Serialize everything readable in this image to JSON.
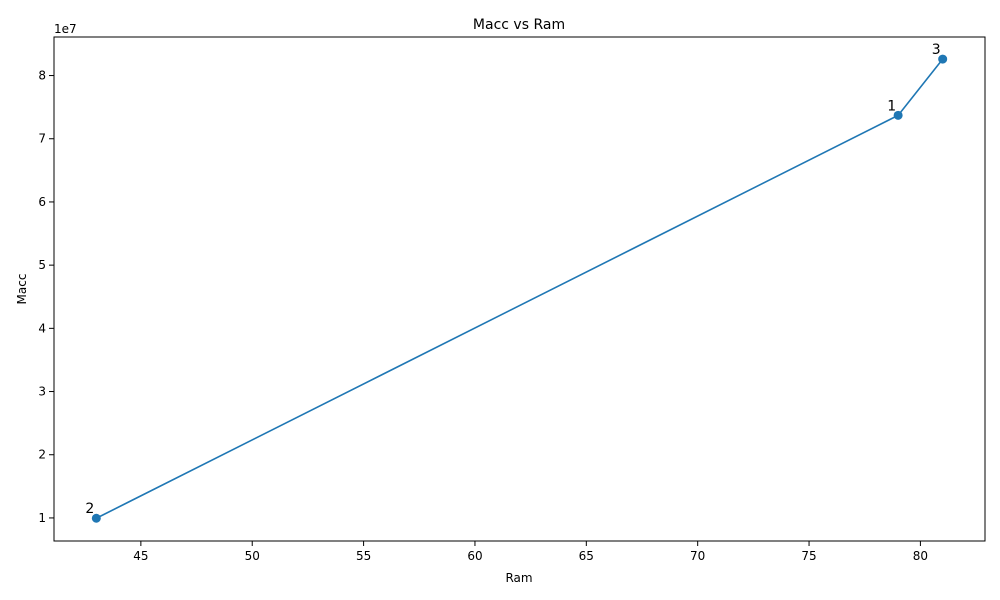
{
  "chart_data": {
    "type": "line",
    "title": "Macc vs Ram",
    "xlabel": "Ram",
    "ylabel": "Macc",
    "y_offset_label": "1e7",
    "xlim": [
      41.1,
      82.9
    ],
    "ylim": [
      6350000,
      86100000
    ],
    "x_ticks": [
      45,
      50,
      55,
      60,
      65,
      70,
      75,
      80
    ],
    "x_tick_labels": [
      "45",
      "50",
      "55",
      "60",
      "65",
      "70",
      "75",
      "80"
    ],
    "y_ticks": [
      10000000,
      20000000,
      30000000,
      40000000,
      50000000,
      60000000,
      70000000,
      80000000
    ],
    "y_tick_labels": [
      "1",
      "2",
      "3",
      "4",
      "5",
      "6",
      "7",
      "8"
    ],
    "grid": false,
    "color": "#1f77b4",
    "series": [
      {
        "points": [
          {
            "x": 43,
            "y": 9950000,
            "label": "2"
          },
          {
            "x": 79,
            "y": 73700000,
            "label": "1"
          },
          {
            "x": 81,
            "y": 82600000,
            "label": "3"
          }
        ]
      }
    ]
  }
}
